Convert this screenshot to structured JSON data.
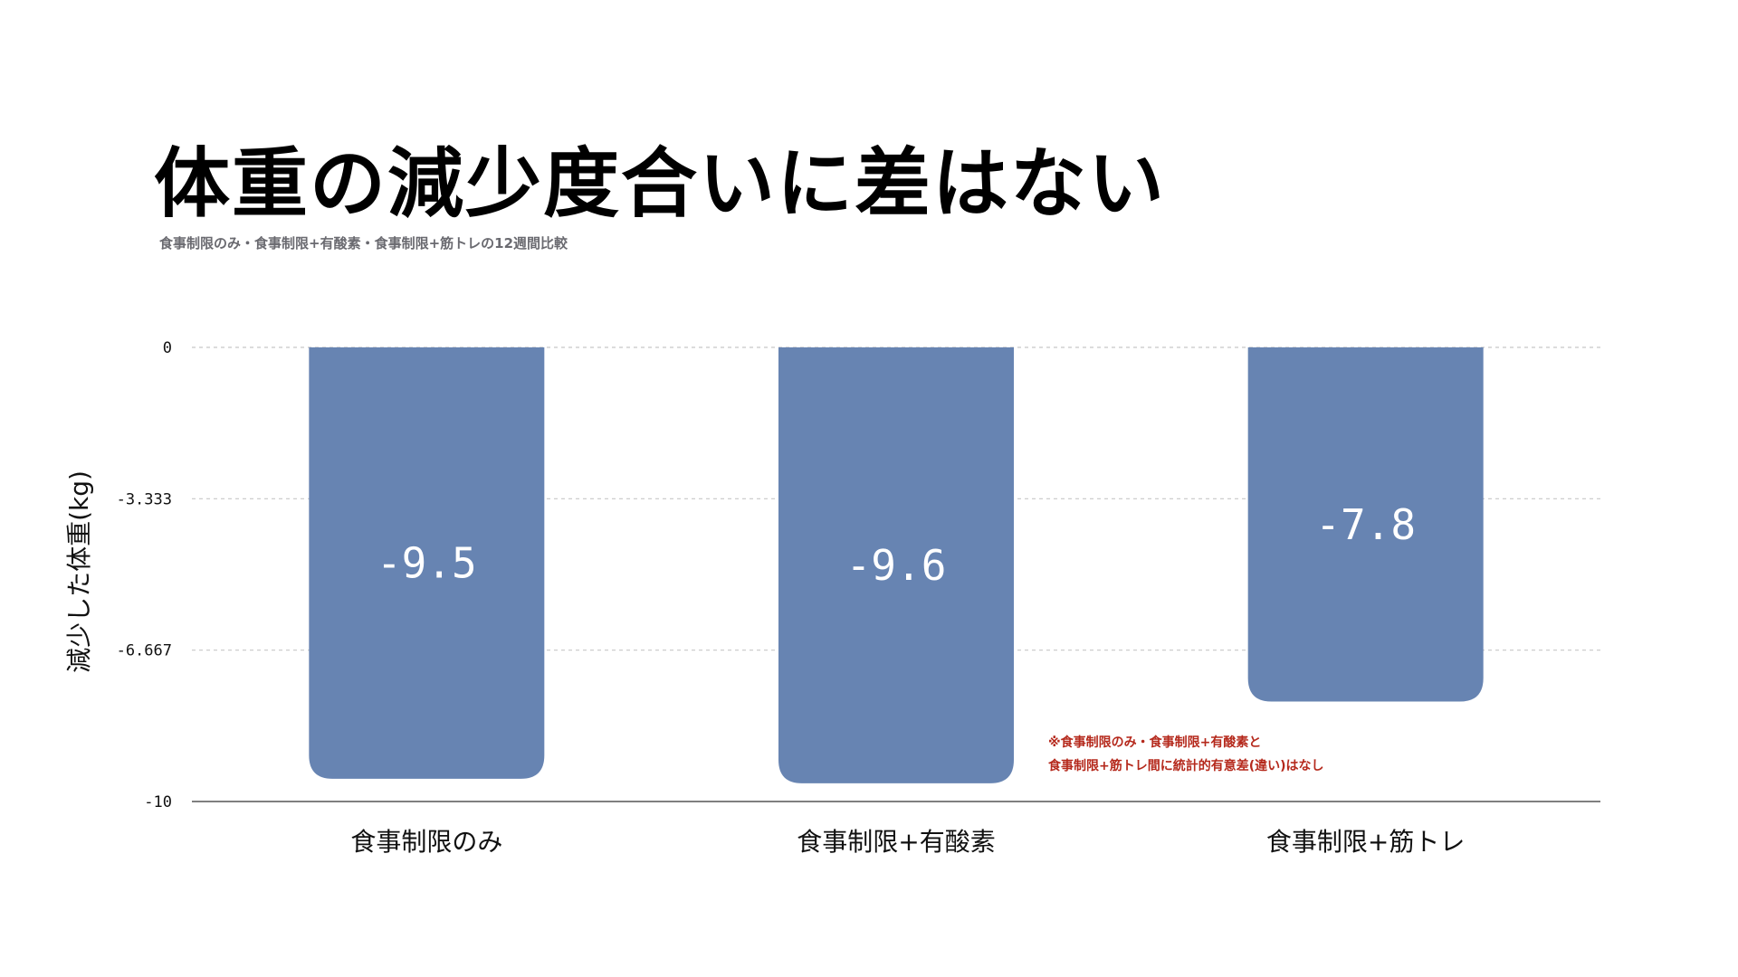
{
  "colors": {
    "bar": "#6784b2",
    "grid": "#c8c8c8",
    "axis": "#555555",
    "note": "#b5291c"
  },
  "chart_data": {
    "type": "bar",
    "title": "体重の減少度合いに差はない",
    "subtitle": "食事制限のみ・食事制限+有酸素・食事制限+筋トレの12週間比較",
    "xlabel": "",
    "ylabel": "減少した体重(kg)",
    "ylim": [
      -10,
      0
    ],
    "yticks": [
      0,
      -3.333,
      -6.667,
      -10
    ],
    "ytick_labels": [
      "0",
      "-3.333",
      "-6.667",
      "-10"
    ],
    "grid": true,
    "categories": [
      "食事制限のみ",
      "食事制限+有酸素",
      "食事制限+筋トレ"
    ],
    "values": [
      -9.5,
      -9.6,
      -7.8
    ],
    "value_labels": [
      "-9.5",
      "-9.6",
      "-7.8"
    ],
    "annotations": [
      "※食事制限のみ・食事制限+有酸素と",
      "食事制限+筋トレ間に統計的有意差(違い)はなし"
    ]
  }
}
